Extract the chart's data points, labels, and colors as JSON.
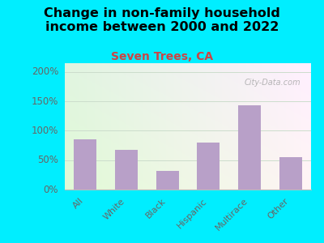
{
  "title": "Change in non-family household\nincome between 2000 and 2022",
  "subtitle": "Seven Trees, CA",
  "categories": [
    "All",
    "White",
    "Black",
    "Hispanic",
    "Multirace",
    "Other"
  ],
  "values": [
    85,
    68,
    32,
    80,
    143,
    55
  ],
  "bar_color": "#b8a0c8",
  "title_fontsize": 11.5,
  "subtitle_fontsize": 10,
  "subtitle_color": "#cc4444",
  "title_color": "#000000",
  "background_outer": "#00eeff",
  "ylabel_color": "#666666",
  "tick_color": "#666666",
  "yticks": [
    0,
    50,
    100,
    150,
    200
  ],
  "ylim": [
    0,
    215
  ],
  "watermark": "City-Data.com",
  "watermark_color": "#aaaaaa",
  "grid_color": "#ccddcc"
}
